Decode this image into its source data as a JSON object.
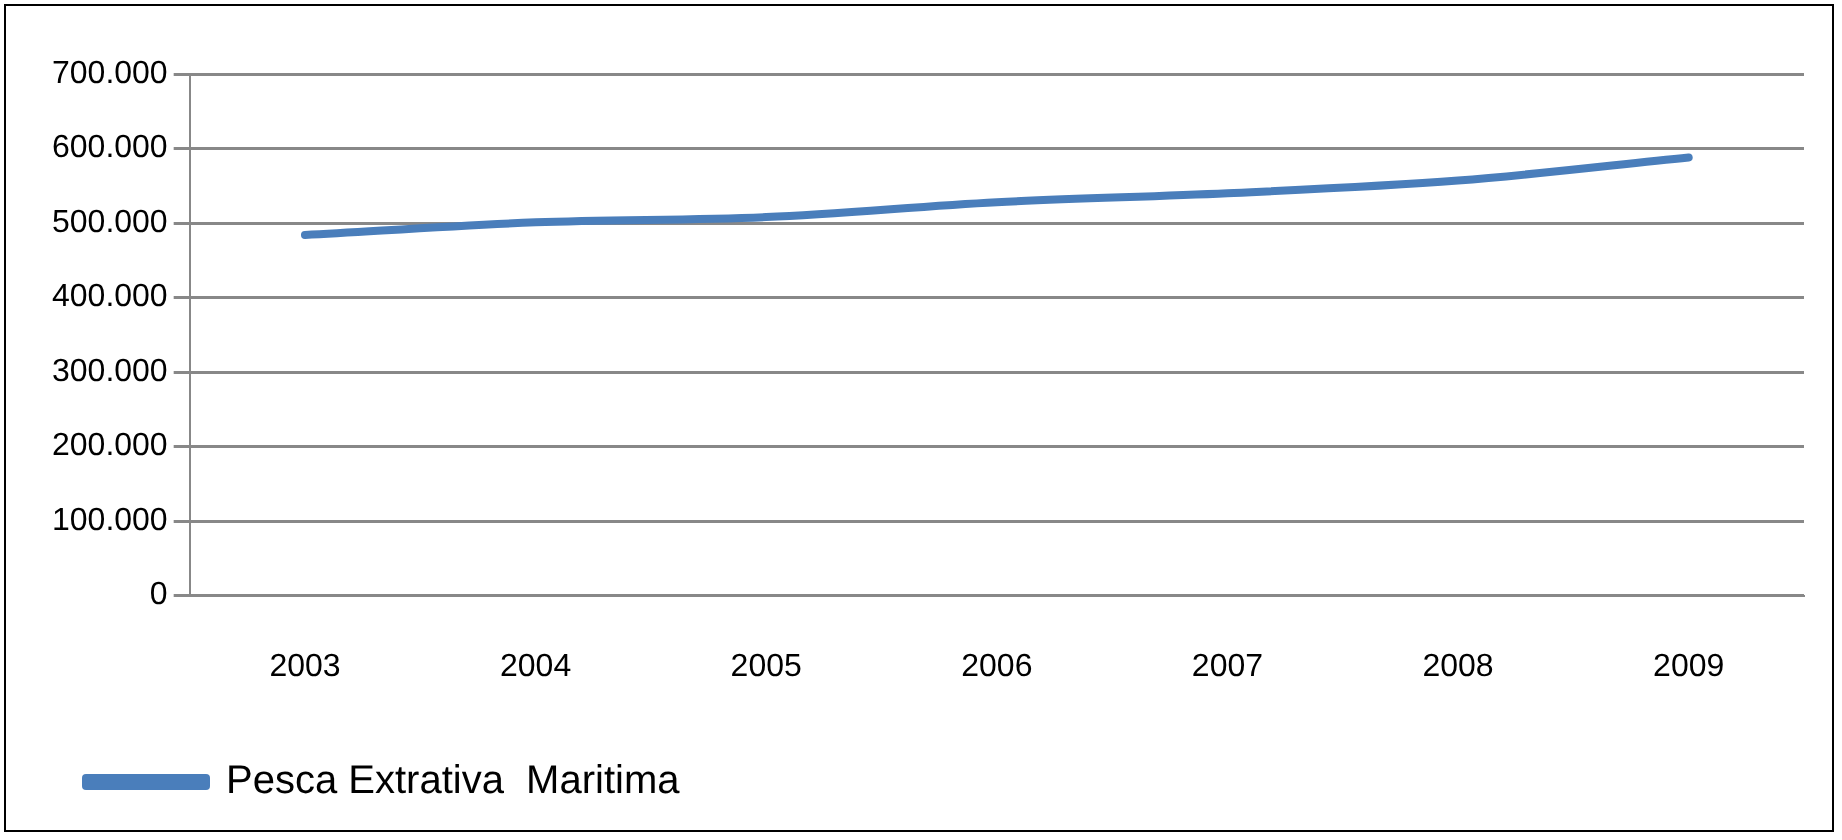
{
  "chart_data": {
    "type": "line",
    "categories": [
      "2003",
      "2004",
      "2005",
      "2006",
      "2007",
      "2008",
      "2009"
    ],
    "series": [
      {
        "name": "Pesca Extrativa  Maritima",
        "color": "#4a7ebb",
        "values": [
          484000,
          501000,
          508000,
          528000,
          540000,
          557000,
          588000
        ]
      }
    ],
    "ylim": [
      0,
      700000
    ],
    "yticks": [
      {
        "value": 0,
        "label": "0"
      },
      {
        "value": 100000,
        "label": "100.000"
      },
      {
        "value": 200000,
        "label": "200.000"
      },
      {
        "value": 300000,
        "label": "300.000"
      },
      {
        "value": 400000,
        "label": "400.000"
      },
      {
        "value": 500000,
        "label": "500.000"
      },
      {
        "value": 600000,
        "label": "600.000"
      },
      {
        "value": 700000,
        "label": "700.000"
      }
    ],
    "grid": "y",
    "legend": "bottom left",
    "marker": "none",
    "line_style": "solid"
  }
}
